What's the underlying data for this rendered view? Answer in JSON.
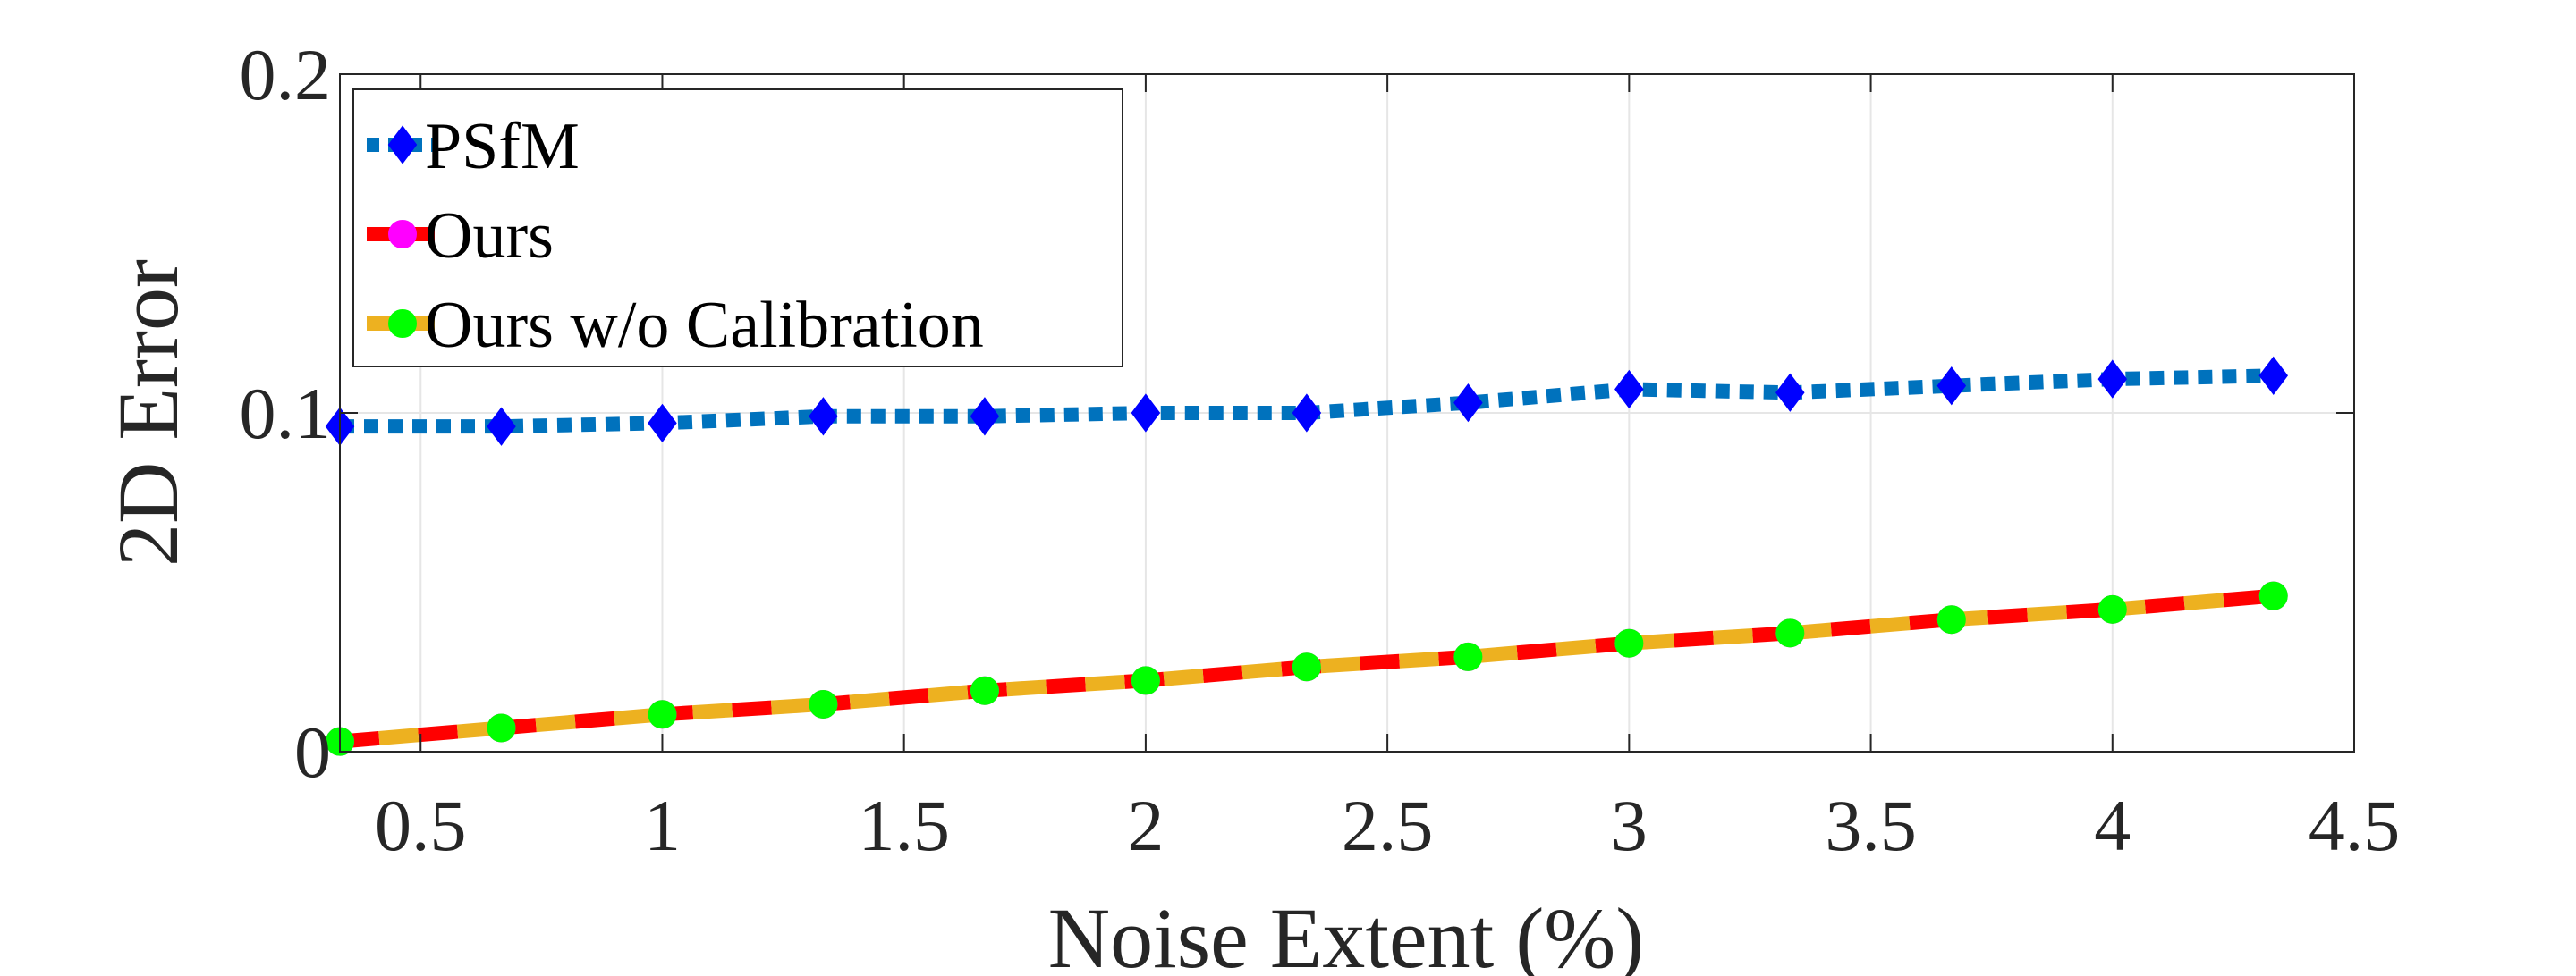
{
  "chart_data": {
    "type": "line",
    "title": "",
    "xlabel": "Noise Extent (%)",
    "ylabel": "2D Error",
    "xlim": [
      0.333,
      4.5
    ],
    "ylim": [
      0,
      0.2
    ],
    "grid": true,
    "legend_position": "top-left",
    "x_ticks": [
      0.5,
      1,
      1.5,
      2,
      2.5,
      3,
      3.5,
      4,
      4.5
    ],
    "x_tick_labels": [
      "0.5",
      "1",
      "1.5",
      "2",
      "2.5",
      "3",
      "3.5",
      "4",
      "4.5"
    ],
    "y_ticks": [
      0,
      0.1,
      0.2
    ],
    "y_tick_labels": [
      "0",
      "0.1",
      "0.2"
    ],
    "x": [
      0.333,
      0.667,
      1.0,
      1.333,
      1.667,
      2.0,
      2.333,
      2.667,
      3.0,
      3.333,
      3.667,
      4.0,
      4.333
    ],
    "series": [
      {
        "name": "PSfM",
        "line_colors": [
          "#0072BD"
        ],
        "marker": "diamond",
        "marker_color": "#0000FF",
        "dash": "dotted",
        "values": [
          0.096,
          0.096,
          0.097,
          0.099,
          0.099,
          0.1,
          0.1,
          0.103,
          0.107,
          0.106,
          0.108,
          0.11,
          0.111
        ]
      },
      {
        "name": "Ours",
        "line_colors": [
          "#FF0000",
          "#FF0000"
        ],
        "marker": "circle",
        "marker_color": "#FF00FF",
        "dash": "dashed",
        "values": [
          0.003,
          0.007,
          0.011,
          0.014,
          0.018,
          0.021,
          0.025,
          0.028,
          0.032,
          0.035,
          0.039,
          0.042,
          0.046
        ]
      },
      {
        "name": "Ours w/o Calibration",
        "line_colors": [
          "#EDB120"
        ],
        "marker": "circle",
        "marker_color": "#00FF00",
        "dash": "dashed",
        "values": [
          0.003,
          0.007,
          0.011,
          0.014,
          0.018,
          0.021,
          0.025,
          0.028,
          0.032,
          0.035,
          0.039,
          0.042,
          0.046
        ]
      }
    ]
  }
}
